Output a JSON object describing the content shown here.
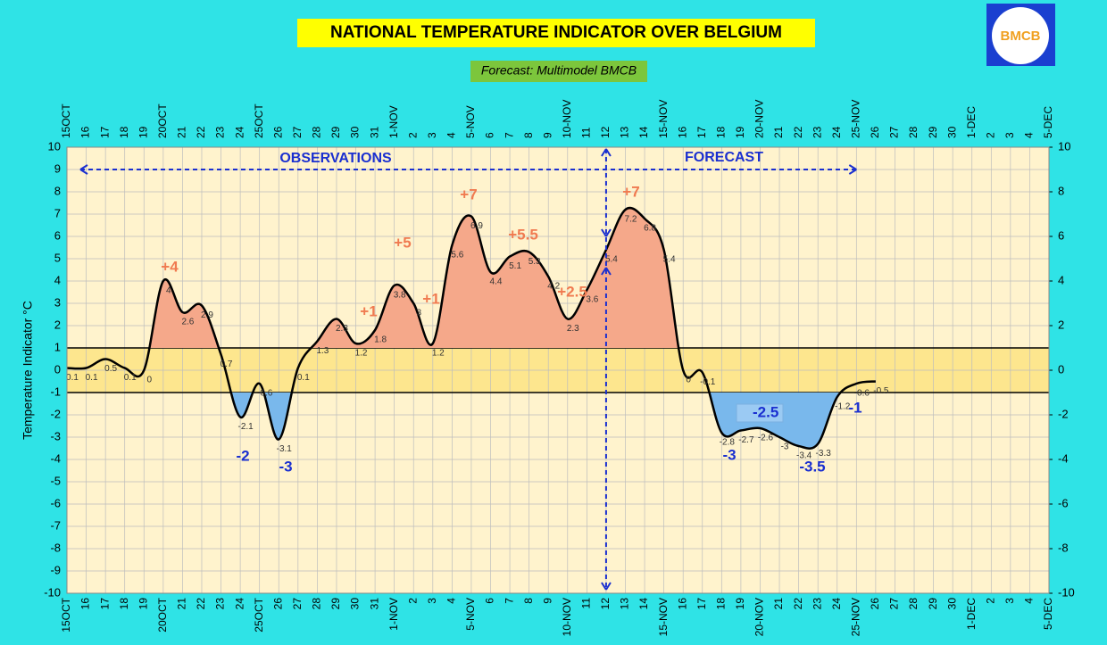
{
  "chart_data": {
    "type": "line",
    "title": "NATIONAL TEMPERATURE INDICATOR OVER  BELGIUM",
    "subtitle": "Forecast:  Multimodel BMCB",
    "logo": "BMCB",
    "y_label": "Temperature Indicator   °C",
    "categories": [
      "15OCT",
      "16",
      "17",
      "18",
      "19",
      "20OCT",
      "21",
      "22",
      "23",
      "24",
      "25OCT",
      "26",
      "27",
      "28",
      "29",
      "30",
      "31",
      "1-NOV",
      "2",
      "3",
      "4",
      "5-NOV",
      "6",
      "7",
      "8",
      "9",
      "10-NOV",
      "11",
      "12",
      "13",
      "14",
      "15-NOV",
      "16",
      "17",
      "18",
      "19",
      "20-NOV",
      "21",
      "22",
      "23",
      "24",
      "25-NOV",
      "26",
      "27",
      "28",
      "29",
      "30",
      "1-DEC",
      "2",
      "3",
      "4",
      "5-DEC"
    ],
    "series": [
      {
        "name": "Temperature Indicator",
        "color": "#000000",
        "values": [
          0.1,
          0.1,
          0.5,
          0.1,
          0,
          4,
          2.6,
          2.9,
          0.7,
          -2.1,
          -0.6,
          -3.1,
          0.1,
          1.3,
          2.3,
          1.2,
          1.8,
          3.8,
          3,
          1.2,
          5.6,
          6.9,
          4.4,
          5.1,
          5.3,
          4.2,
          2.3,
          3.6,
          5.4,
          7.2,
          6.8,
          5.4,
          0,
          -0.1,
          -2.8,
          -2.7,
          -2.6,
          -3,
          -3.4,
          -3.3,
          -1.2,
          -0.6,
          -0.5,
          null,
          null,
          null,
          null,
          null,
          null,
          null,
          null,
          null
        ]
      }
    ],
    "normal_band": [
      -1,
      1
    ],
    "above_color": "#f5a88a",
    "below_color": "#79b8ec",
    "annotations": [
      "+4",
      "-2",
      "-3",
      "+1",
      "+5",
      "+1",
      "+7",
      "+5.5",
      "+2.5",
      "+7",
      "-3",
      "-2.5",
      "-3.5",
      "-1",
      "OBSERVATIONS",
      "FORECAST"
    ],
    "ylim": [
      -10,
      10
    ],
    "yticks": [
      -10,
      -9,
      -8,
      -7,
      -6,
      -5,
      -4,
      -3,
      -2,
      -1,
      0,
      1,
      2,
      3,
      4,
      5,
      6,
      7,
      8,
      9,
      10
    ],
    "y2lim": [
      -10,
      10
    ],
    "y2ticks": [
      -10,
      -8,
      -6,
      -4,
      -2,
      0,
      2,
      4,
      6,
      8,
      10
    ],
    "grid": true
  }
}
